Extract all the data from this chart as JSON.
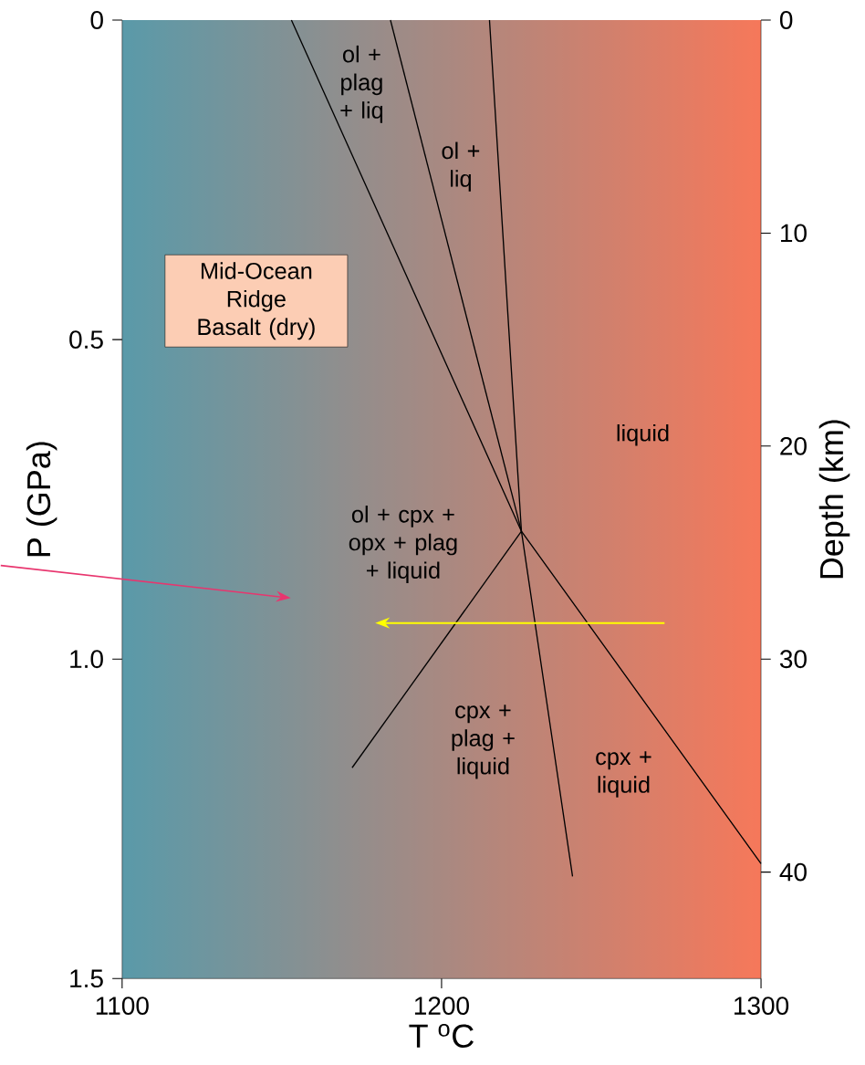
{
  "chart_data": {
    "type": "line",
    "xlabel": "T $^{o}$C",
    "ylabel": "P (GPa)",
    "y2label": "Depth (km)",
    "xlim": [
      1100,
      1300
    ],
    "xticks": [
      1100,
      1200,
      1300
    ],
    "ylim": [
      1.5,
      0
    ],
    "yticks": [
      0,
      0.5,
      {
        "value": 1.0,
        "label": "1.0"
      },
      1.5
    ],
    "y2lim": [
      45,
      0
    ],
    "y2ticks": [
      0,
      10,
      20,
      30,
      40
    ],
    "series": [
      {
        "color": "#000000",
        "x": [
          1153,
          1225,
          1300
        ],
        "values": [
          0,
          0.8,
          1.32
        ]
      },
      {
        "color": "#000000",
        "x": [
          1184,
          1225
        ],
        "values": [
          0,
          0.8
        ]
      },
      {
        "color": "#000000",
        "x": [
          1215,
          1225,
          1241
        ],
        "values": [
          0,
          0.8,
          1.34
        ]
      },
      {
        "color": "#000000",
        "x": [
          1225,
          1172
        ],
        "values": [
          0.8,
          1.17
        ]
      }
    ],
    "annotations": [
      "ol + plag + liq",
      "ol + liq",
      "liquid",
      "ol + cpx + opx + plag + liquid",
      "cpx + plag + liquid",
      "cpx + liquid",
      "Mid-Ocean Ridge Basalt (dry)"
    ]
  }
}
